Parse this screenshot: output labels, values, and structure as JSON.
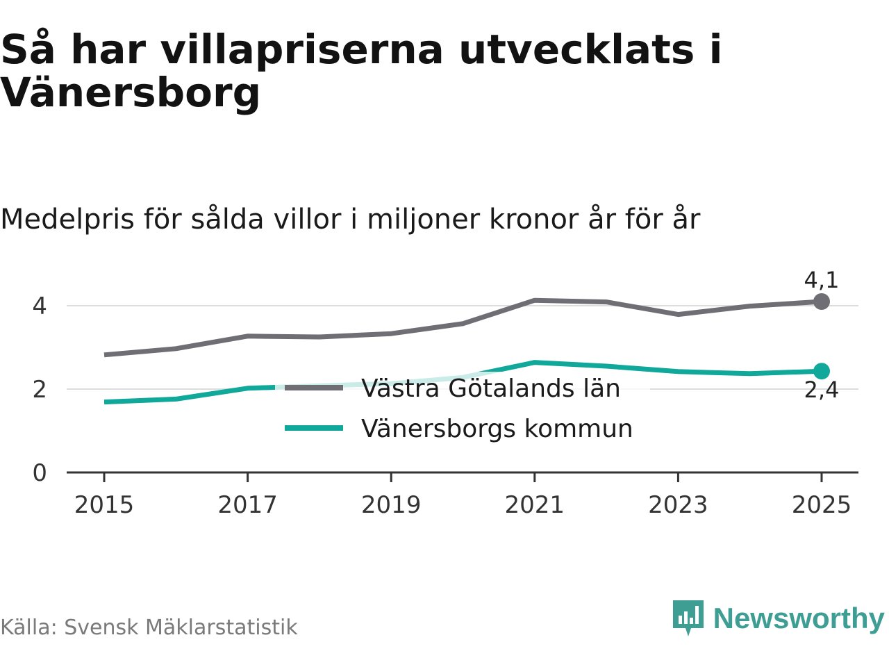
{
  "title": "Så har villapriserna utvecklats i Vänersborg",
  "subtitle": "Medelpris för sålda villor i miljoner kronor år för år",
  "source": "Källa: Svensk Mäklarstatistik",
  "brand": {
    "name": "Newsworthy",
    "color": "#3f9e94",
    "icon": "newsworthy-logo-icon"
  },
  "chart_data": {
    "type": "line",
    "title": "Medelpris för sålda villor i miljoner kronor år för år",
    "xlabel": "",
    "ylabel": "",
    "x": [
      2015,
      2016,
      2017,
      2018,
      2019,
      2020,
      2021,
      2022,
      2023,
      2024,
      2025
    ],
    "x_ticks": [
      2015,
      2017,
      2019,
      2021,
      2023,
      2025
    ],
    "y_ticks": [
      0,
      2,
      4
    ],
    "xlim": [
      2014,
      2026
    ],
    "ylim": [
      0,
      4.6
    ],
    "grid": true,
    "legend_position": "center",
    "series": [
      {
        "name": "Västra Götalands län",
        "color": "#6e6e74",
        "values": [
          2.82,
          2.97,
          3.27,
          3.25,
          3.33,
          3.57,
          4.13,
          4.09,
          3.79,
          3.99,
          4.1
        ],
        "end_label": "4,1"
      },
      {
        "name": "Vänersborgs kommun",
        "color": "#10a89a",
        "values": [
          1.69,
          1.76,
          2.02,
          2.08,
          2.13,
          2.28,
          2.64,
          2.55,
          2.42,
          2.37,
          2.43
        ],
        "end_label": "2,4"
      }
    ]
  }
}
